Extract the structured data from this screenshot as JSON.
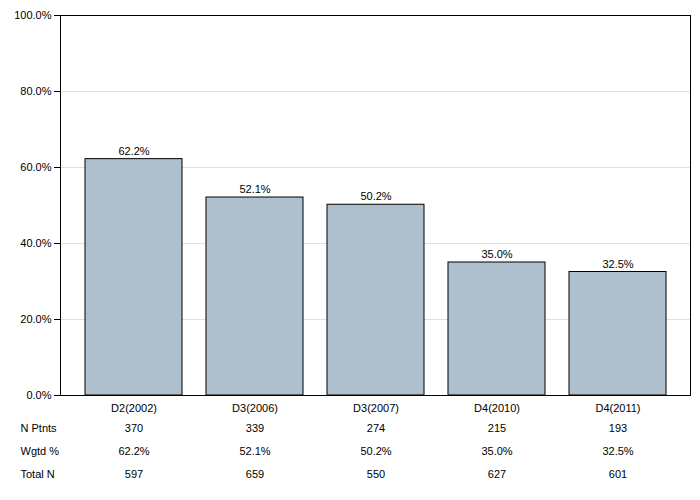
{
  "chart_data": {
    "type": "bar",
    "categories": [
      "D2(2002)",
      "D3(2006)",
      "D3(2007)",
      "D4(2010)",
      "D4(2011)"
    ],
    "values": [
      62.2,
      52.1,
      50.2,
      35.0,
      32.5
    ],
    "value_labels": [
      "62.2%",
      "52.1%",
      "50.2%",
      "35.0%",
      "32.5%"
    ],
    "data_labels": true,
    "color": "#aebfce",
    "ylim": [
      0,
      100
    ],
    "yticks": [
      {
        "value": 0,
        "label": "0.0%"
      },
      {
        "value": 20,
        "label": "20.0%"
      },
      {
        "value": 40,
        "label": "40.0%"
      },
      {
        "value": 60,
        "label": "60.0%"
      },
      {
        "value": 80,
        "label": "80.0%"
      },
      {
        "value": 100,
        "label": "100.0%"
      }
    ],
    "grid": true,
    "table": {
      "rows": [
        {
          "label": "N Ptnts",
          "values": [
            370,
            339,
            274,
            215,
            193
          ]
        },
        {
          "label": "Wgtd %",
          "values": [
            62.2,
            52.1,
            50.2,
            35.0,
            32.5
          ],
          "value_labels": [
            "62.2%",
            "52.1%",
            "50.2%",
            "35.0%",
            "32.5%"
          ]
        },
        {
          "label": "Total N",
          "values": [
            597,
            659,
            550,
            627,
            601
          ]
        }
      ]
    }
  }
}
